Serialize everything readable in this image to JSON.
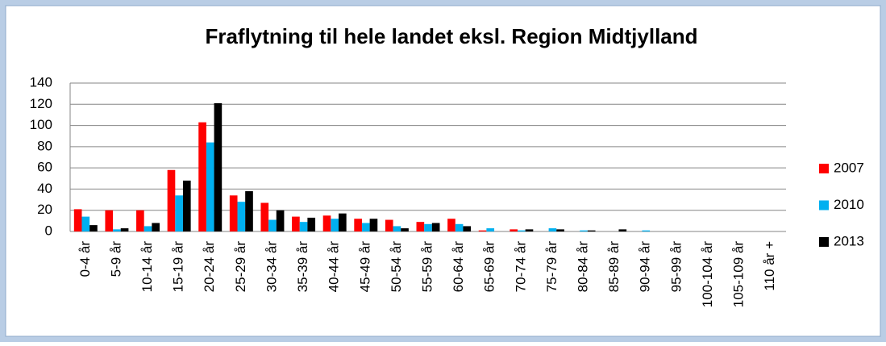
{
  "chart_data": {
    "type": "bar",
    "title": "Fraflytning til hele landet eksl. Region Midtjylland",
    "categories": [
      "0-4 år",
      "5-9 år",
      "10-14 år",
      "15-19 år",
      "20-24 år",
      "25-29 år",
      "30-34 år",
      "35-39 år",
      "40-44 år",
      "45-49 år",
      "50-54 år",
      "55-59 år",
      "60-64 år",
      "65-69 år",
      "70-74 år",
      "75-79 år",
      "80-84 år",
      "85-89 år",
      "90-94 år",
      "95-99 år",
      "100-104 år",
      "105-109 år",
      "110 år +"
    ],
    "series": [
      {
        "name": "2007",
        "color": "#ff0000",
        "values": [
          21,
          20,
          20,
          58,
          103,
          34,
          27,
          14,
          15,
          12,
          11,
          9,
          12,
          1,
          2,
          0,
          0,
          0,
          0,
          0,
          0,
          0,
          0
        ]
      },
      {
        "name": "2010",
        "color": "#00b0f0",
        "values": [
          14,
          2,
          5,
          34,
          84,
          28,
          11,
          9,
          12,
          8,
          5,
          7,
          7,
          3,
          1,
          3,
          1,
          0,
          1,
          0,
          0,
          0,
          0
        ]
      },
      {
        "name": "2013",
        "color": "#000000",
        "values": [
          6,
          3,
          8,
          48,
          121,
          38,
          20,
          13,
          17,
          12,
          3,
          8,
          5,
          0,
          2,
          2,
          1,
          2,
          0,
          0,
          0,
          0,
          0
        ]
      }
    ],
    "ylim": [
      0,
      140
    ],
    "yticks": [
      0,
      20,
      40,
      60,
      80,
      100,
      120,
      140
    ],
    "grid": true,
    "legend": "right"
  }
}
